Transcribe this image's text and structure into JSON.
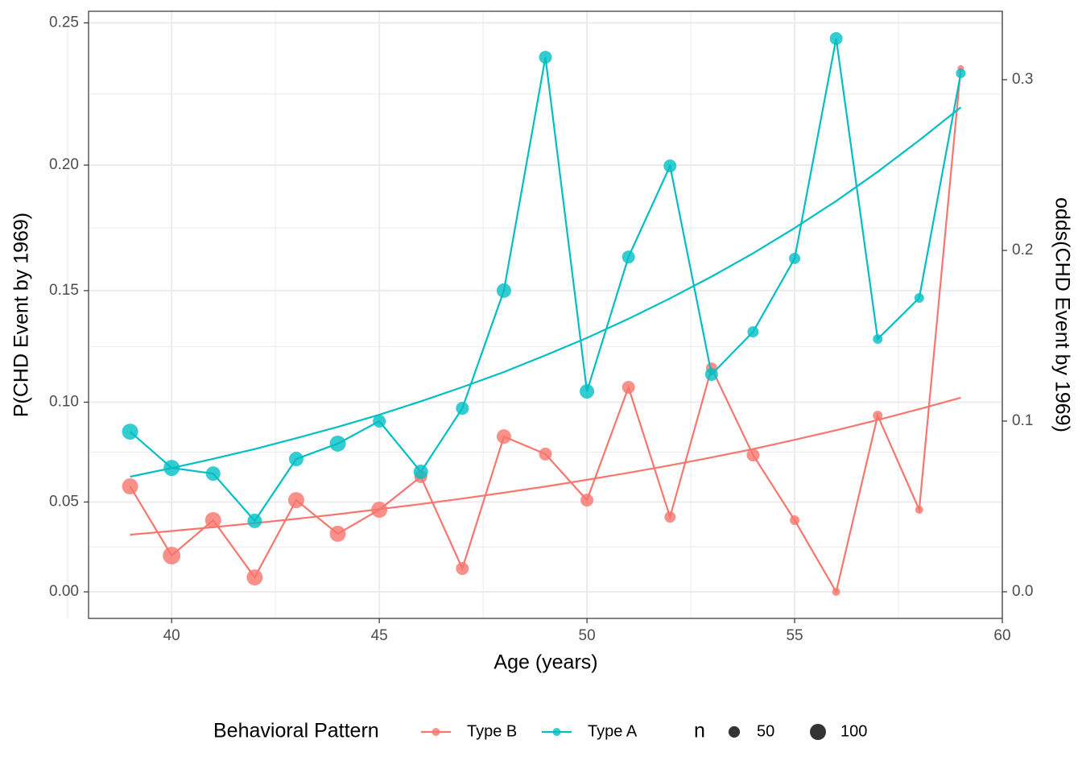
{
  "chart_data": {
    "type": "line",
    "xlabel": "Age (years)",
    "ylabel": "P(CHD Event by 1969)",
    "y2label": "odds(CHD Event by 1969)",
    "yscale": "odds",
    "grid": true,
    "legend_position": "bottom",
    "legend_title": "Behavioral Pattern",
    "size_legend": {
      "title": "n",
      "values": [
        50,
        100
      ]
    },
    "x": [
      39,
      40,
      41,
      42,
      43,
      44,
      45,
      46,
      47,
      48,
      49,
      50,
      51,
      52,
      53,
      54,
      55,
      56,
      57,
      58,
      59
    ],
    "xlim": [
      38,
      60
    ],
    "xticks": [
      40,
      45,
      50,
      55,
      60
    ],
    "ylim": [
      -0.0158,
      0.2538
    ],
    "yticks": [
      {
        "value": 0,
        "label": "0.00"
      },
      {
        "value": 0.05,
        "label": "0.05"
      },
      {
        "value": 0.1,
        "label": "0.10"
      },
      {
        "value": 0.15,
        "label": "0.15"
      },
      {
        "value": 0.2,
        "label": "0.20"
      },
      {
        "value": 0.25,
        "label": "0.25"
      }
    ],
    "y2lim": [
      -0.0156,
      0.3401
    ],
    "y2ticks": [
      {
        "value": 0,
        "label": "0.0"
      },
      {
        "value": 0.1,
        "label": "0.1"
      },
      {
        "value": 0.2,
        "label": "0.2"
      },
      {
        "value": 0.3,
        "label": "0.3"
      }
    ],
    "series": [
      {
        "name": "Type B",
        "color": "#F8766D",
        "values": [
          0.0582,
          0.0208,
          0.0403,
          0.0084,
          0.051,
          0.0329,
          0.0459,
          0.0632,
          0.0135,
          0.0834,
          0.0747,
          0.051,
          0.107,
          0.042,
          0.1159,
          0.0742,
          0.0403,
          0,
          0.0936,
          0.0459,
          0.2347
        ],
        "sizes": [
          100,
          120,
          100,
          100,
          100,
          100,
          100,
          64,
          64,
          81,
          64,
          64,
          64,
          49,
          49,
          64,
          36,
          25,
          36,
          25,
          16
        ],
        "fit": [
          0.0324,
          0.0344,
          0.0365,
          0.0387,
          0.041,
          0.0435,
          0.0462,
          0.0489,
          0.0518,
          0.0549,
          0.0581,
          0.0616,
          0.0652,
          0.069,
          0.073,
          0.0772,
          0.0818,
          0.0865,
          0.0915,
          0.0967,
          0.1021
        ]
      },
      {
        "name": "Type A",
        "color": "#00BFC4",
        "values": [
          0.0858,
          0.0677,
          0.0648,
          0.0399,
          0.0722,
          0.0799,
          0.0909,
          0.0657,
          0.0971,
          0.15,
          0.2385,
          0.1051,
          0.164,
          0.1997,
          0.113,
          0.1322,
          0.1634,
          0.2448,
          0.129,
          0.1469,
          0.233
        ],
        "sizes": [
          100,
          100,
          81,
          81,
          81,
          100,
          64,
          81,
          64,
          81,
          64,
          81,
          64,
          64,
          64,
          49,
          49,
          64,
          36,
          36,
          36
        ],
        "fit": [
          0.0632,
          0.0676,
          0.0723,
          0.0772,
          0.0826,
          0.0881,
          0.094,
          0.1004,
          0.1071,
          0.1141,
          0.1217,
          0.1295,
          0.1379,
          0.1467,
          0.1559,
          0.1655,
          0.1757,
          0.1863,
          0.1975,
          0.2092,
          0.2211
        ]
      }
    ]
  }
}
